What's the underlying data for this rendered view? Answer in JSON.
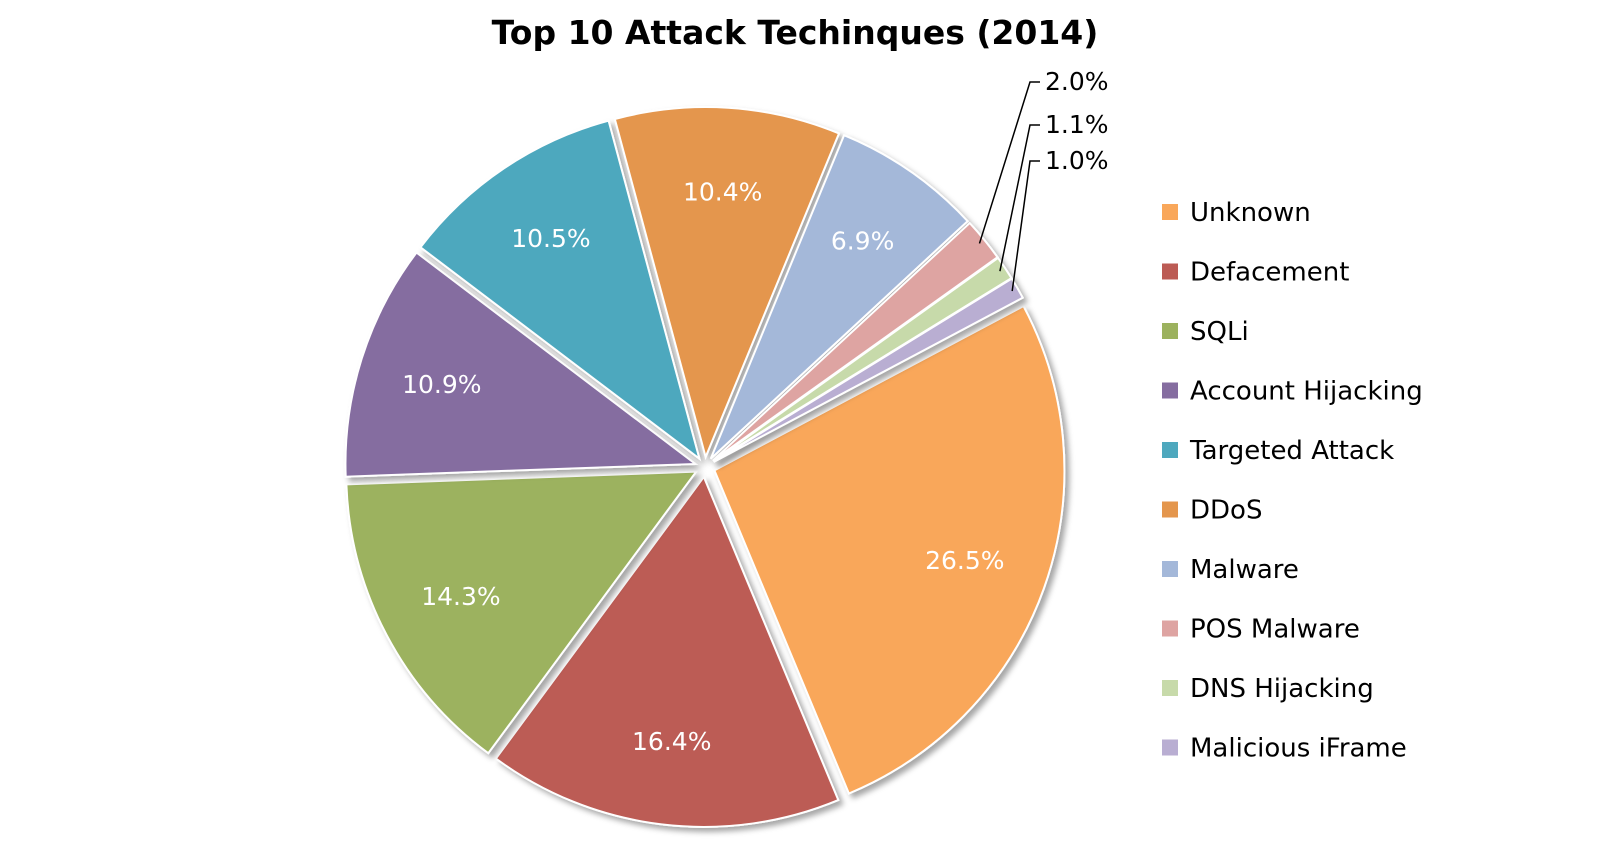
{
  "chart_data": {
    "type": "pie",
    "title": "Top 10 Attack Techinques (2014)",
    "legend_position": "right",
    "slices": [
      {
        "name": "Unknown",
        "value": 26.5,
        "label": "26.5%",
        "color": "#F9A75A"
      },
      {
        "name": "Defacement",
        "value": 16.4,
        "label": "16.4%",
        "color": "#BC5B54"
      },
      {
        "name": "SQLi",
        "value": 14.3,
        "label": "14.3%",
        "color": "#9CB25E"
      },
      {
        "name": "Account Hijacking",
        "value": 10.9,
        "label": "10.9%",
        "color": "#856DA0"
      },
      {
        "name": "Targeted Attack",
        "value": 10.5,
        "label": "10.5%",
        "color": "#4EA8BE"
      },
      {
        "name": "DDoS",
        "value": 10.4,
        "label": "10.4%",
        "color": "#E4964D"
      },
      {
        "name": "Malware",
        "value": 6.9,
        "label": "6.9%",
        "color": "#A4B8D9"
      },
      {
        "name": "POS Malware",
        "value": 2.0,
        "label": "2.0%",
        "color": "#DEA4A2"
      },
      {
        "name": "DNS Hijacking",
        "value": 1.1,
        "label": "1.1%",
        "color": "#C7DAAA"
      },
      {
        "name": "Malicious iFrame",
        "value": 1.0,
        "label": "1.0%",
        "color": "#B9AED2"
      }
    ]
  }
}
